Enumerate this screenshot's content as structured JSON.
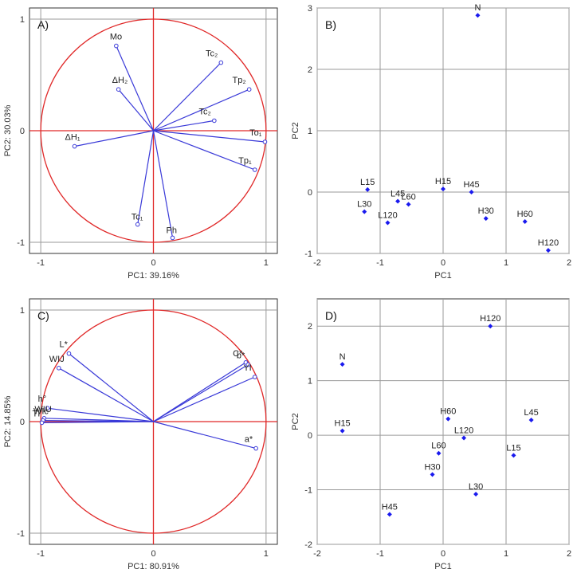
{
  "colors": {
    "vector": "#3a3ad8",
    "point": "#1a1aee",
    "circle": "#e02828",
    "zero_line": "#e02828",
    "grid": "#9a9a9a",
    "axis": "#333333"
  },
  "chart_data": [
    {
      "type": "scatter",
      "panel_label": "A)",
      "xlabel": "PC1: 39.16%",
      "ylabel": "PC2: 30.03%",
      "xlim": [
        -1.1,
        1.1
      ],
      "ylim": [
        -1.1,
        1.1
      ],
      "xticks": [
        -1,
        0,
        1
      ],
      "yticks": [
        -1,
        0,
        1
      ],
      "unit_circle": true,
      "loadings": [
        {
          "label": "Mo",
          "x": -0.33,
          "y": 0.76
        },
        {
          "label": "Tc2",
          "x": 0.6,
          "y": 0.61
        },
        {
          "label": "Tp2",
          "x": 0.85,
          "y": 0.37
        },
        {
          "label": "ΔH2",
          "x": -0.31,
          "y": 0.37
        },
        {
          "label": "Tc2",
          "x": 0.54,
          "y": 0.09
        },
        {
          "label": "To1",
          "x": 0.99,
          "y": -0.1
        },
        {
          "label": "Tp1",
          "x": 0.9,
          "y": -0.35
        },
        {
          "label": "ΔH1",
          "x": -0.7,
          "y": -0.14
        },
        {
          "label": "Tc1",
          "x": -0.14,
          "y": -0.84
        },
        {
          "label": "Ph",
          "x": 0.17,
          "y": -0.96
        }
      ]
    },
    {
      "type": "scatter",
      "panel_label": "B)",
      "xlabel": "PC1",
      "ylabel": "PC2",
      "xlim": [
        -2,
        2
      ],
      "ylim": [
        -1,
        3
      ],
      "xticks": [
        -2,
        -1,
        0,
        1,
        2
      ],
      "yticks": [
        -1,
        0,
        1,
        2,
        3
      ],
      "unit_circle": false,
      "points": [
        {
          "label": "N",
          "x": 0.55,
          "y": 2.88
        },
        {
          "label": "L15",
          "x": -1.2,
          "y": 0.04
        },
        {
          "label": "L45",
          "x": -0.72,
          "y": -0.15
        },
        {
          "label": "L60",
          "x": -0.55,
          "y": -0.2
        },
        {
          "label": "L30",
          "x": -1.25,
          "y": -0.32
        },
        {
          "label": "L120",
          "x": -0.88,
          "y": -0.5
        },
        {
          "label": "H15",
          "x": 0.0,
          "y": 0.05
        },
        {
          "label": "H45",
          "x": 0.45,
          "y": 0.0
        },
        {
          "label": "H30",
          "x": 0.68,
          "y": -0.43
        },
        {
          "label": "H60",
          "x": 1.3,
          "y": -0.48
        },
        {
          "label": "H120",
          "x": 1.67,
          "y": -0.95
        }
      ]
    },
    {
      "type": "scatter",
      "panel_label": "C)",
      "xlabel": "PC1: 80.91%",
      "ylabel": "PC2: 14.85%",
      "xlim": [
        -1.1,
        1.1
      ],
      "ylim": [
        -1.1,
        1.1
      ],
      "xticks": [
        -1,
        0,
        1
      ],
      "yticks": [
        -1,
        0,
        1
      ],
      "unit_circle": true,
      "loadings": [
        {
          "label": "L*",
          "x": -0.75,
          "y": 0.61
        },
        {
          "label": "WIJ",
          "x": -0.84,
          "y": 0.48
        },
        {
          "label": "C*",
          "x": 0.82,
          "y": 0.53
        },
        {
          "label": "b*",
          "x": 0.84,
          "y": 0.51
        },
        {
          "label": "YI",
          "x": 0.9,
          "y": 0.4
        },
        {
          "label": "h°",
          "x": -0.94,
          "y": 0.12
        },
        {
          "label": "WIU",
          "x": -0.97,
          "y": 0.03
        },
        {
          "label": "WIc",
          "x": -0.98,
          "y": 0.01
        },
        {
          "label": "TI",
          "x": -0.99,
          "y": -0.01
        },
        {
          "label": "a*",
          "x": 0.91,
          "y": -0.24
        }
      ]
    },
    {
      "type": "scatter",
      "panel_label": "D)",
      "xlabel": "PC1",
      "ylabel": "PC2",
      "xlim": [
        -2,
        2
      ],
      "ylim": [
        -2,
        2.5
      ],
      "xticks": [
        -2,
        -1,
        0,
        1,
        2
      ],
      "yticks": [
        -2,
        -1,
        0,
        1,
        2
      ],
      "unit_circle": false,
      "points": [
        {
          "label": "H120",
          "x": 0.75,
          "y": 2.0
        },
        {
          "label": "N",
          "x": -1.6,
          "y": 1.3
        },
        {
          "label": "H15",
          "x": -1.6,
          "y": 0.08
        },
        {
          "label": "H60",
          "x": 0.08,
          "y": 0.3
        },
        {
          "label": "L120",
          "x": 0.33,
          "y": -0.05
        },
        {
          "label": "L45",
          "x": 1.4,
          "y": 0.28
        },
        {
          "label": "L60",
          "x": -0.07,
          "y": -0.33
        },
        {
          "label": "L15",
          "x": 1.12,
          "y": -0.37
        },
        {
          "label": "H30",
          "x": -0.17,
          "y": -0.72
        },
        {
          "label": "L30",
          "x": 0.52,
          "y": -1.08
        },
        {
          "label": "H45",
          "x": -0.85,
          "y": -1.45
        }
      ]
    }
  ]
}
